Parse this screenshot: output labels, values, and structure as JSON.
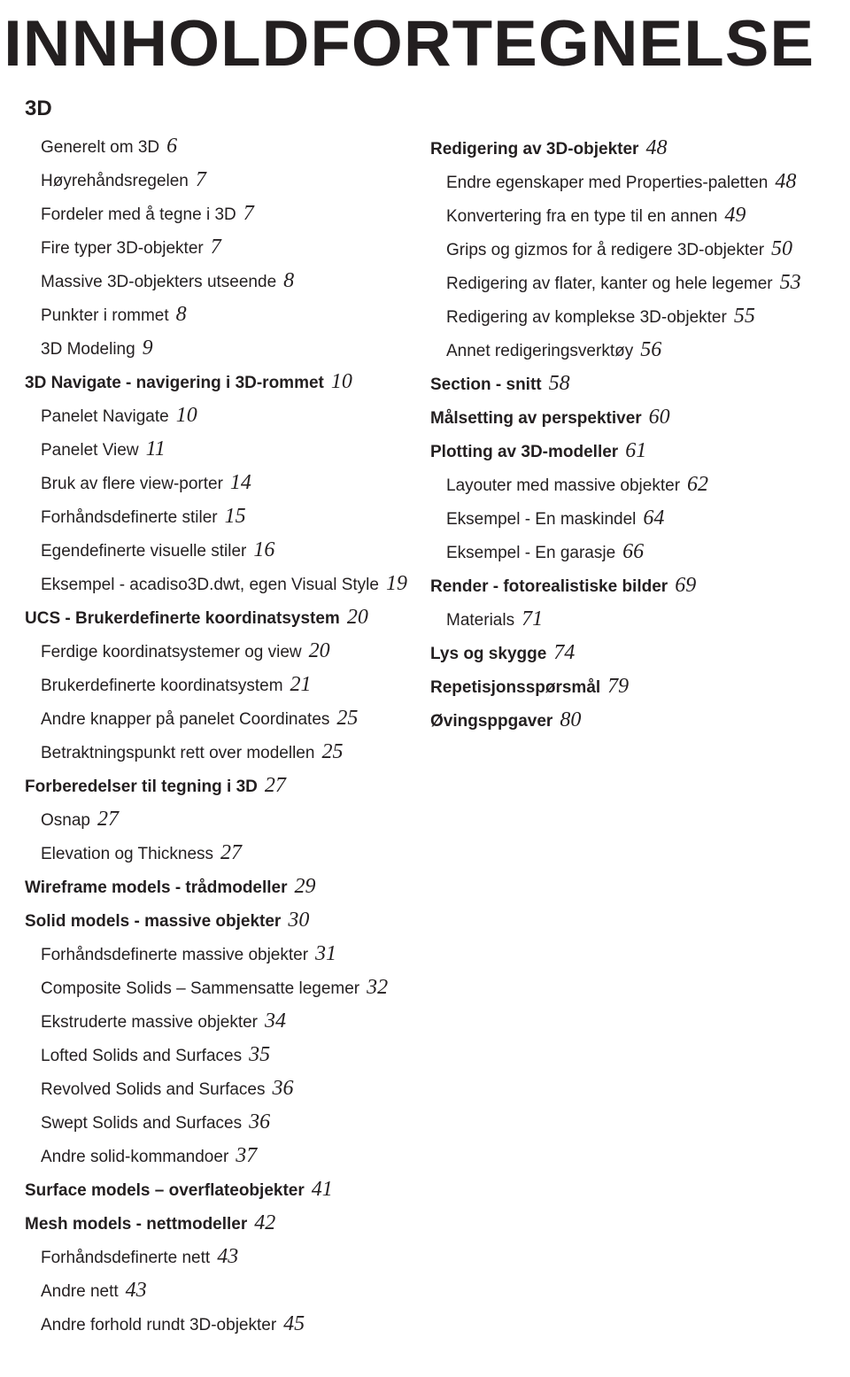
{
  "title": "INNHOLDFORTEGNELSE",
  "sectionLabel": "3D",
  "style": {
    "bg": "#ffffff",
    "text": "#231f20",
    "titleFontSize": 73,
    "bodyFontSize": 19,
    "pageNumFontSize": 24
  },
  "left": [
    {
      "label": "Generelt om 3D",
      "page": "6",
      "indent": true
    },
    {
      "label": "Høyrehåndsregelen",
      "page": "7",
      "indent": true
    },
    {
      "label": "Fordeler med å tegne i 3D",
      "page": "7",
      "indent": true
    },
    {
      "label": "Fire typer 3D-objekter",
      "page": "7",
      "indent": true
    },
    {
      "label": "Massive 3D-objekters utseende",
      "page": "8",
      "indent": true
    },
    {
      "label": "Punkter i rommet",
      "page": "8",
      "indent": true
    },
    {
      "label": "3D Modeling",
      "page": "9",
      "indent": true
    },
    {
      "label": "3D Navigate - navigering i 3D-rommet",
      "page": "10",
      "bold": true
    },
    {
      "label": "Panelet Navigate",
      "page": "10",
      "indent": true
    },
    {
      "label": "Panelet View",
      "page": "11",
      "indent": true
    },
    {
      "label": "Bruk av flere view-porter",
      "page": "14",
      "indent": true
    },
    {
      "label": "Forhåndsdefinerte stiler",
      "page": "15",
      "indent": true
    },
    {
      "label": "Egendefinerte visuelle stiler",
      "page": "16",
      "indent": true
    },
    {
      "label": "Eksempel - acadiso3D.dwt, egen Visual Style",
      "page": "19",
      "indent": true
    },
    {
      "label": "UCS - Brukerdefinerte koordinatsystem",
      "page": "20",
      "bold": true
    },
    {
      "label": "Ferdige koordinatsystemer og view",
      "page": "20",
      "indent": true
    },
    {
      "label": "Brukerdefinerte koordinatsystem",
      "page": "21",
      "indent": true
    },
    {
      "label": "Andre knapper på panelet Coordinates",
      "page": "25",
      "indent": true
    },
    {
      "label": "Betraktningspunkt rett over modellen",
      "page": "25",
      "indent": true
    },
    {
      "label": "Forberedelser til tegning i 3D",
      "page": "27",
      "bold": true
    },
    {
      "label": "Osnap",
      "page": "27",
      "indent": true
    },
    {
      "label": "Elevation og Thickness",
      "page": "27",
      "indent": true
    },
    {
      "label": "Wireframe models - trådmodeller",
      "page": "29",
      "bold": true
    },
    {
      "label": "Solid models - massive objekter",
      "page": "30",
      "bold": true
    },
    {
      "label": "Forhåndsdefinerte massive objekter",
      "page": "31",
      "indent": true
    },
    {
      "label": "Composite Solids – Sammensatte legemer",
      "page": "32",
      "indent": true
    },
    {
      "label": "Ekstruderte massive objekter",
      "page": "34",
      "indent": true
    },
    {
      "label": "Lofted Solids and Surfaces",
      "page": "35",
      "indent": true
    },
    {
      "label": "Revolved Solids and Surfaces",
      "page": "36",
      "indent": true
    },
    {
      "label": "Swept Solids and Surfaces",
      "page": "36",
      "indent": true
    },
    {
      "label": "Andre solid-kommandoer",
      "page": "37",
      "indent": true
    },
    {
      "label": "Surface models – overflateobjekter",
      "page": "41",
      "bold": true
    },
    {
      "label": "Mesh models - nettmodeller",
      "page": "42",
      "bold": true
    },
    {
      "label": "Forhåndsdefinerte nett",
      "page": "43",
      "indent": true
    },
    {
      "label": "Andre nett",
      "page": "43",
      "indent": true
    },
    {
      "label": "Andre forhold rundt 3D-objekter",
      "page": "45",
      "indent": true
    }
  ],
  "right": [
    {
      "label": "Redigering av 3D-objekter",
      "page": "48",
      "bold": true
    },
    {
      "label": "Endre egenskaper med Properties-paletten",
      "page": "48",
      "indent": true
    },
    {
      "label": "Konvertering fra en type til en annen",
      "page": "49",
      "indent": true
    },
    {
      "label": "Grips og gizmos for å redigere 3D-objekter",
      "page": "50",
      "indent": true
    },
    {
      "label": "Redigering av flater, kanter og hele legemer",
      "page": "53",
      "indent": true
    },
    {
      "label": "Redigering av komplekse 3D-objekter",
      "page": "55",
      "indent": true
    },
    {
      "label": "Annet redigeringsverktøy",
      "page": "56",
      "indent": true
    },
    {
      "label": "Section - snitt",
      "page": "58",
      "bold": true
    },
    {
      "label": "Målsetting av perspektiver",
      "page": "60",
      "bold": true
    },
    {
      "label": "Plotting av 3D-modeller",
      "page": "61",
      "bold": true
    },
    {
      "label": "Layouter med massive objekter",
      "page": "62",
      "indent": true
    },
    {
      "label": "Eksempel - En maskindel",
      "page": "64",
      "indent": true
    },
    {
      "label": "Eksempel - En garasje",
      "page": "66",
      "indent": true
    },
    {
      "label": "Render - fotorealistiske bilder",
      "page": "69",
      "bold": true
    },
    {
      "label": "Materials",
      "page": "71",
      "indent": true
    },
    {
      "label": "Lys og skygge",
      "page": "74",
      "bold": true
    },
    {
      "label": "Repetisjonsspørsmål",
      "page": "79",
      "bold": true
    },
    {
      "label": "Øvingsppgaver",
      "page": "80",
      "bold": true
    }
  ]
}
